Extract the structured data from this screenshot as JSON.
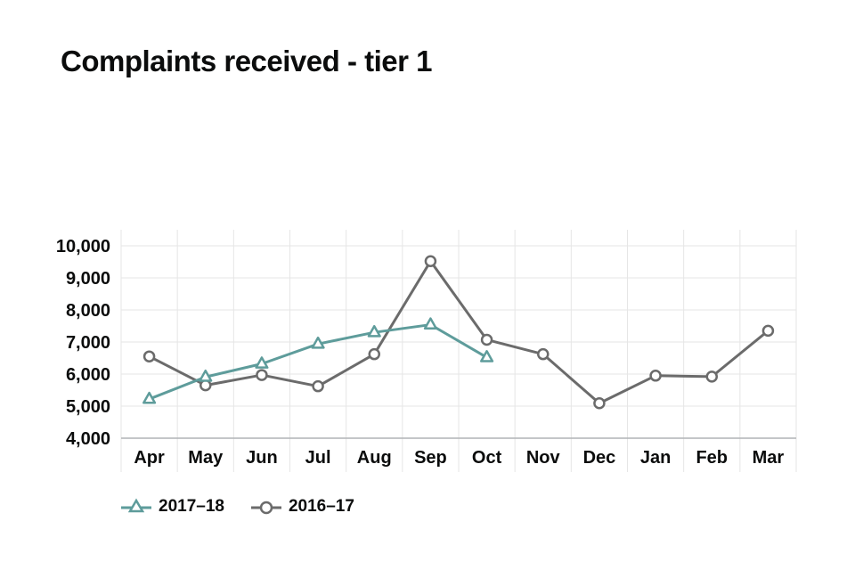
{
  "chart_data": {
    "type": "line",
    "title": "Complaints received - tier 1",
    "xlabel": "",
    "ylabel": "",
    "categories": [
      "Apr",
      "May",
      "Jun",
      "Jul",
      "Aug",
      "Sep",
      "Oct",
      "Nov",
      "Dec",
      "Jan",
      "Feb",
      "Mar"
    ],
    "ylim": [
      4000,
      10500
    ],
    "yticks": [
      4000,
      5000,
      6000,
      7000,
      8000,
      9000,
      10000
    ],
    "ytick_labels": [
      "4,000",
      "5,000",
      "6,000",
      "7,000",
      "8,000",
      "9,000",
      "10,000"
    ],
    "grid": true,
    "legend_position": "bottom-left",
    "series": [
      {
        "name": "2017–18",
        "color": "#5e9c9b",
        "marker": "triangle",
        "values": [
          5220,
          5910,
          6320,
          6940,
          7300,
          7540,
          6520,
          null,
          null,
          null,
          null,
          null
        ]
      },
      {
        "name": "2016–17",
        "color": "#6b6b6b",
        "marker": "circle",
        "values": [
          6550,
          5650,
          5970,
          5620,
          6620,
          9520,
          7070,
          6620,
          5090,
          5950,
          5920,
          7350
        ]
      }
    ]
  }
}
